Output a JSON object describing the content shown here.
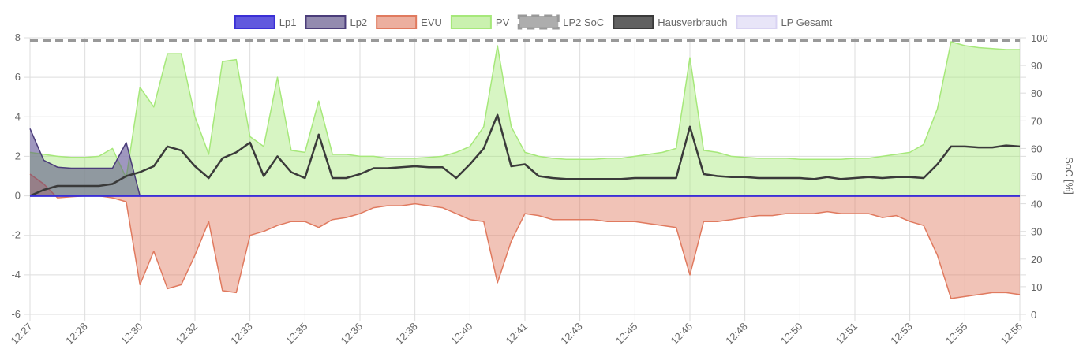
{
  "chart_data": {
    "type": "line",
    "categories": [
      "12:27",
      null,
      null,
      null,
      "12:28",
      null,
      null,
      null,
      "12:30",
      null,
      null,
      null,
      "12:32",
      null,
      null,
      null,
      "12:33",
      null,
      null,
      null,
      "12:35",
      null,
      null,
      null,
      "12:36",
      null,
      null,
      null,
      "12:38",
      null,
      null,
      null,
      "12:40",
      null,
      null,
      null,
      "12:41",
      null,
      null,
      null,
      "12:43",
      null,
      null,
      null,
      "12:45",
      null,
      null,
      null,
      "12:46",
      null,
      null,
      null,
      "12:48",
      null,
      null,
      null,
      "12:50",
      null,
      null,
      null,
      "12:51",
      null,
      null,
      null,
      "12:53",
      null,
      null,
      null,
      "12:55",
      null,
      null,
      null,
      "12:56"
    ],
    "y2_label": "SoC [%]",
    "ylim": [
      -6,
      8
    ],
    "yticks": [
      -6,
      -4,
      -2,
      0,
      2,
      4,
      6,
      8
    ],
    "y2lim": [
      0,
      100
    ],
    "y2ticks": [
      0,
      10,
      20,
      30,
      40,
      50,
      60,
      70,
      80,
      90,
      100
    ],
    "grid": true,
    "legend": "top",
    "series": [
      {
        "name": "Lp1",
        "color": "#3a2fd6",
        "fill": false,
        "values": [
          0,
          0,
          0,
          0,
          0,
          0,
          0,
          0,
          0,
          0,
          0,
          0,
          0,
          0,
          0,
          0,
          0,
          0,
          0,
          0,
          0,
          0,
          0,
          0,
          0,
          0,
          0,
          0,
          0,
          0,
          0,
          0,
          0,
          0,
          0,
          0,
          0,
          0,
          0,
          0,
          0,
          0,
          0,
          0,
          0,
          0,
          0,
          0,
          0,
          0,
          0,
          0,
          0,
          0,
          0,
          0,
          0,
          0,
          0,
          0,
          0,
          0,
          0,
          0,
          0,
          0,
          0,
          0,
          0,
          0,
          0,
          0,
          0
        ]
      },
      {
        "name": "Lp2",
        "color": "#4b3d7a",
        "fill": true,
        "values": [
          3.4,
          1.8,
          1.45,
          1.4,
          1.4,
          1.4,
          1.4,
          2.7,
          0,
          0,
          0,
          0,
          0,
          0,
          0,
          0,
          0,
          0,
          0,
          0,
          0,
          0,
          0,
          0,
          0,
          0,
          0,
          0,
          0,
          0,
          0,
          0,
          0,
          0,
          0,
          0,
          0,
          0,
          0,
          0,
          0,
          0,
          0,
          0,
          0,
          0,
          0,
          0,
          0,
          0,
          0,
          0,
          0,
          0,
          0,
          0,
          0,
          0,
          0,
          0,
          0,
          0,
          0,
          0,
          0,
          0,
          0,
          0,
          0,
          0,
          0,
          0,
          0
        ]
      },
      {
        "name": "EVU",
        "color": "#e07a5f",
        "fill": true,
        "values": [
          1.1,
          0.6,
          -0.1,
          -0.05,
          0,
          0,
          -0.1,
          -0.3,
          -4.5,
          -2.8,
          -4.7,
          -4.5,
          -3.0,
          -1.3,
          -4.8,
          -4.9,
          -2.0,
          -1.8,
          -1.5,
          -1.3,
          -1.3,
          -1.6,
          -1.2,
          -1.1,
          -0.9,
          -0.6,
          -0.5,
          -0.5,
          -0.4,
          -0.5,
          -0.6,
          -0.9,
          -1.2,
          -1.3,
          -4.4,
          -2.3,
          -0.9,
          -1.0,
          -1.2,
          -1.2,
          -1.2,
          -1.2,
          -1.3,
          -1.3,
          -1.3,
          -1.4,
          -1.5,
          -1.6,
          -4.0,
          -1.3,
          -1.3,
          -1.2,
          -1.1,
          -1.0,
          -1.0,
          -0.9,
          -0.9,
          -0.9,
          -0.8,
          -0.9,
          -0.9,
          -0.9,
          -1.1,
          -1.0,
          -1.3,
          -1.5,
          -3.0,
          -5.2,
          -5.1,
          -5.0,
          -4.9,
          -4.9,
          -5.0
        ]
      },
      {
        "name": "PV",
        "color": "#a6e87a",
        "fill": true,
        "values": [
          2.2,
          2.1,
          2.0,
          1.95,
          1.95,
          2.0,
          2.4,
          0.9,
          5.5,
          4.5,
          7.2,
          7.2,
          4.0,
          2.1,
          6.8,
          6.9,
          3.0,
          2.5,
          6.0,
          2.3,
          2.2,
          4.8,
          2.1,
          2.1,
          2.0,
          2.0,
          1.9,
          1.9,
          1.9,
          1.95,
          2.0,
          2.2,
          2.5,
          3.5,
          7.6,
          3.5,
          2.2,
          2.0,
          1.9,
          1.85,
          1.85,
          1.85,
          1.9,
          1.9,
          2.0,
          2.1,
          2.2,
          2.4,
          7.0,
          2.3,
          2.2,
          2.0,
          1.95,
          1.9,
          1.9,
          1.9,
          1.85,
          1.85,
          1.85,
          1.85,
          1.9,
          1.9,
          2.0,
          2.1,
          2.2,
          2.6,
          4.4,
          7.8,
          7.6,
          7.5,
          7.45,
          7.4,
          7.4
        ]
      },
      {
        "name": "LP2 SoC",
        "color": "#999999",
        "fill": false,
        "dashed": true,
        "axis": "y2",
        "values": [
          99,
          99,
          99,
          99,
          99,
          99,
          99,
          99,
          99,
          99,
          99,
          99,
          99,
          99,
          99,
          99,
          99,
          99,
          99,
          99,
          99,
          99,
          99,
          99,
          99,
          99,
          99,
          99,
          99,
          99,
          99,
          99,
          99,
          99,
          99,
          99,
          99,
          99,
          99,
          99,
          99,
          99,
          99,
          99,
          99,
          99,
          99,
          99,
          99,
          99,
          99,
          99,
          99,
          99,
          99,
          99,
          99,
          99,
          99,
          99,
          99,
          99,
          99,
          99,
          99,
          99,
          99,
          99,
          99,
          99,
          99,
          99,
          99
        ]
      },
      {
        "name": "Hausverbrauch",
        "color": "#3a3a3a",
        "fill": false,
        "values": [
          0,
          0.3,
          0.5,
          0.5,
          0.5,
          0.5,
          0.6,
          1.0,
          1.2,
          1.5,
          2.5,
          2.3,
          1.5,
          0.9,
          1.9,
          2.2,
          2.7,
          1.0,
          2.0,
          1.2,
          0.9,
          3.1,
          0.9,
          0.9,
          1.1,
          1.4,
          1.4,
          1.45,
          1.5,
          1.45,
          1.45,
          0.9,
          1.6,
          2.4,
          4.1,
          1.5,
          1.6,
          1.0,
          0.9,
          0.85,
          0.85,
          0.85,
          0.85,
          0.85,
          0.9,
          0.9,
          0.9,
          0.9,
          3.5,
          1.1,
          1.0,
          0.95,
          0.95,
          0.9,
          0.9,
          0.9,
          0.9,
          0.85,
          0.95,
          0.85,
          0.9,
          0.95,
          0.9,
          0.95,
          0.95,
          0.9,
          1.6,
          2.5,
          2.5,
          2.45,
          2.45,
          2.55,
          2.5
        ]
      },
      {
        "name": "LP Gesamt",
        "color": "#d9d3f3",
        "fill": true,
        "values": [
          3.4,
          1.8,
          1.45,
          1.4,
          1.4,
          1.4,
          1.4,
          2.7,
          0,
          0,
          0,
          0,
          0,
          0,
          0,
          0,
          0,
          0,
          0,
          0,
          0,
          0,
          0,
          0,
          0,
          0,
          0,
          0,
          0,
          0,
          0,
          0,
          0,
          0,
          0,
          0,
          0,
          0,
          0,
          0,
          0,
          0,
          0,
          0,
          0,
          0,
          0,
          0,
          0,
          0,
          0,
          0,
          0,
          0,
          0,
          0,
          0,
          0,
          0,
          0,
          0,
          0,
          0,
          0,
          0,
          0,
          0,
          0,
          0,
          0,
          0,
          0,
          0
        ]
      }
    ]
  }
}
